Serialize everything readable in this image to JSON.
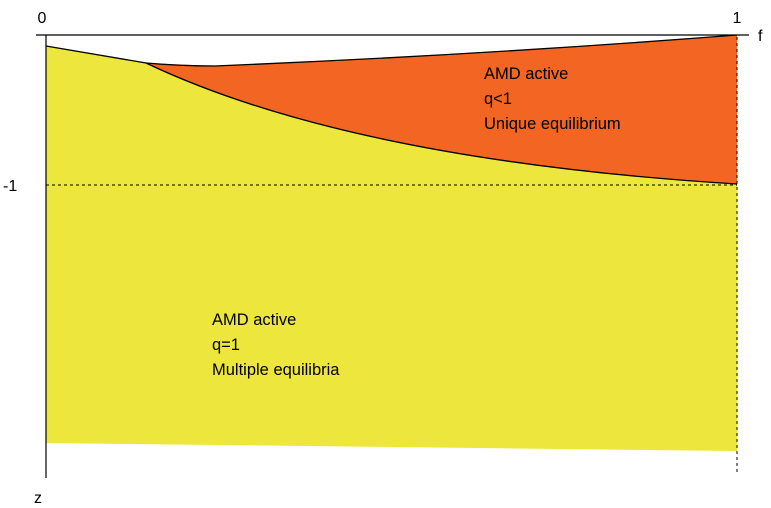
{
  "axes": {
    "x_axis_label": "f",
    "y_axis_label": "z",
    "x_tick_0": "0",
    "x_tick_1": "1",
    "y_tick_neg1": "-1"
  },
  "regions": {
    "upper": {
      "line1": "AMD active",
      "line2": "q<1",
      "line3": "Unique equilibrium",
      "color": "#f26522"
    },
    "lower": {
      "line1": "AMD active",
      "line2": "q=1",
      "line3": "Multiple equilibria",
      "color": "#ede63c"
    }
  }
}
